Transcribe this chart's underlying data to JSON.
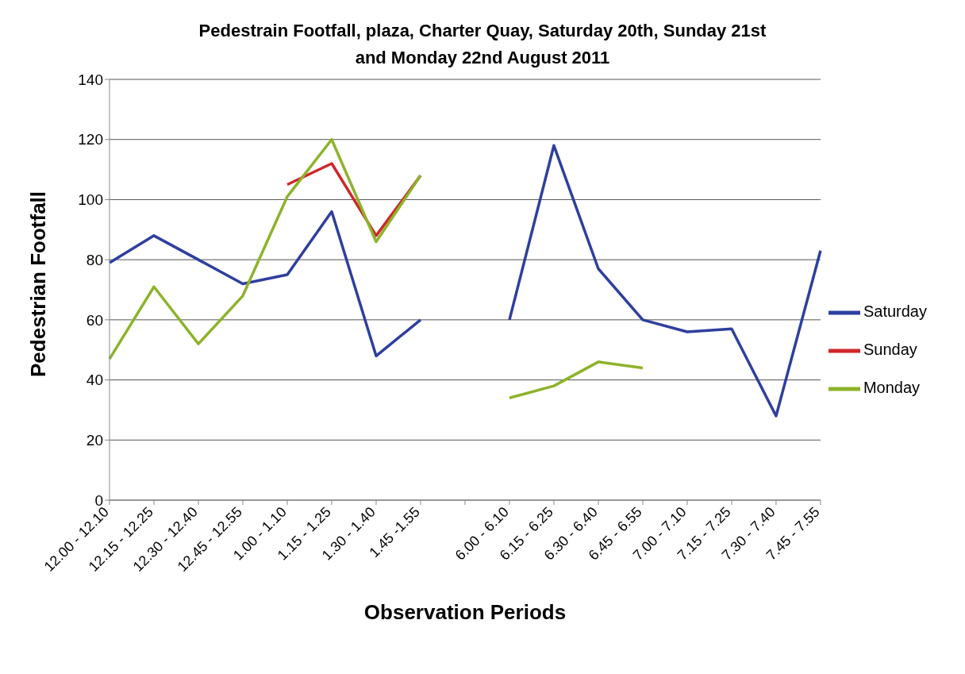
{
  "chart_data": {
    "type": "line",
    "title": "Pedestrain Footfall, plaza, Charter Quay, Saturday 20th, Sunday 21st and Monday 22nd August 2011",
    "xlabel": "Observation Periods",
    "ylabel": "Pedestrian Footfall",
    "categories": [
      "12.00 - 12.10",
      "12.15 - 12.25",
      "12.30 - 12.40",
      "12.45 - 12.55",
      "1.00 - 1.10",
      "1.15 - 1.25",
      "1.30 - 1.40",
      "1.45 -1.55",
      null,
      "6.00 - 6.10",
      "6.15 - 6.25",
      "6.30 - 6.40",
      "6.45 - 6.55",
      "7.00 - 7.10",
      "7.15 - 7.25",
      "7.30 - 7.40",
      "7.45 - 7.55"
    ],
    "series": [
      {
        "name": "Saturday",
        "color": "#2e3f9e",
        "values": [
          79,
          88,
          80,
          72,
          75,
          96,
          48,
          60,
          null,
          60,
          118,
          77,
          60,
          56,
          57,
          28,
          83
        ]
      },
      {
        "name": "Sunday",
        "color": "#d0262a",
        "values": [
          null,
          null,
          null,
          null,
          105,
          112,
          88,
          108,
          null,
          null,
          null,
          null,
          null,
          null,
          null,
          null,
          null
        ]
      },
      {
        "name": "Monday",
        "color": "#8db32b",
        "values": [
          47,
          71,
          52,
          68,
          101,
          120,
          86,
          108,
          null,
          34,
          38,
          46,
          44,
          null,
          null,
          null,
          null
        ]
      }
    ],
    "ylim": [
      0,
      140
    ],
    "yticks": [
      0,
      20,
      40,
      60,
      80,
      100,
      120,
      140
    ],
    "grid": "y",
    "legend": "right",
    "marker": "none",
    "line_style": "solid"
  }
}
